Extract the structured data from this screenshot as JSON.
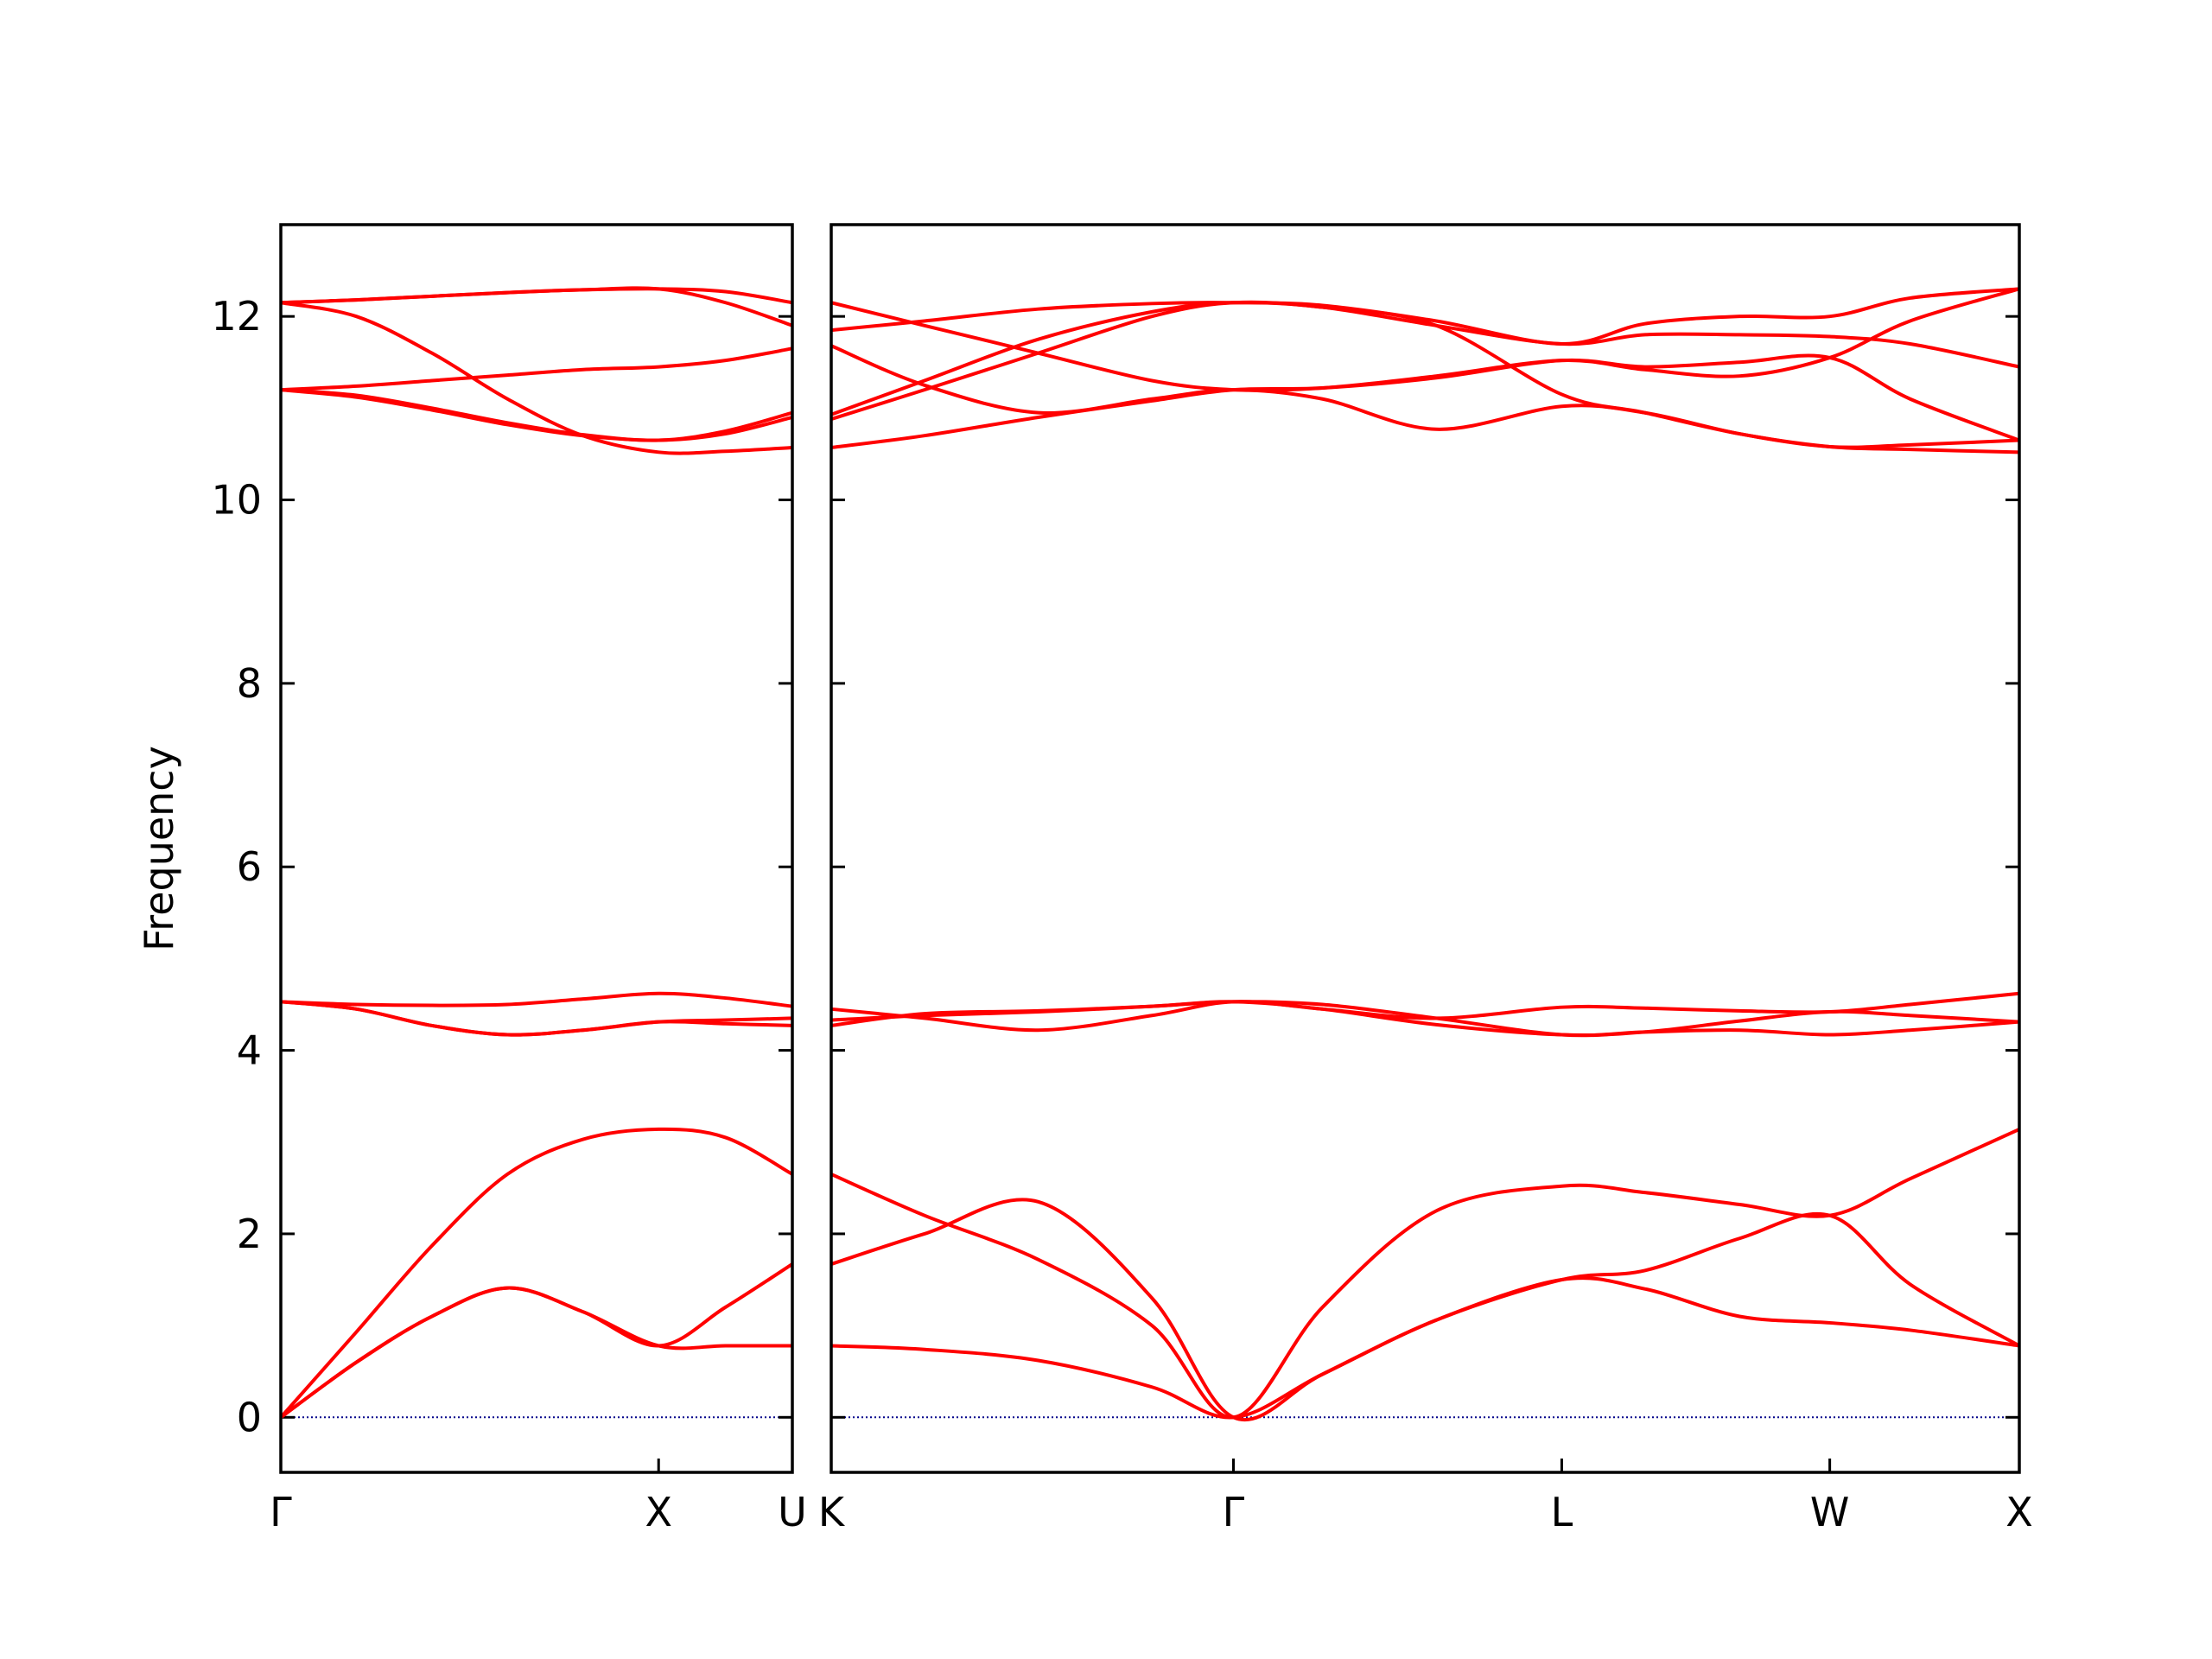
{
  "chart_data": [
    {
      "type": "line",
      "ylabel": "Frequency",
      "x": [
        0,
        0.2,
        0.4,
        0.6,
        0.8,
        1.0,
        1.177,
        1.354
      ],
      "xlim": [
        0,
        1.354
      ],
      "xticks": [
        {
          "value": 0,
          "label": "Γ"
        },
        {
          "value": 1.0,
          "label": "X"
        },
        {
          "value": 1.354,
          "label": "U"
        }
      ],
      "ylim": [
        -0.6,
        13
      ],
      "yticks": [
        0,
        2,
        4,
        6,
        8,
        10,
        12
      ],
      "hline": 0,
      "hline_color": "#00008b",
      "series": [
        {
          "color": "#ff0000",
          "values": [
            0,
            0.6,
            1.1,
            1.41,
            1.15,
            0.78,
            0.78,
            0.78
          ]
        },
        {
          "color": "#ff0000",
          "values": [
            0,
            0.6,
            1.1,
            1.41,
            1.15,
            0.78,
            1.2,
            1.67
          ]
        },
        {
          "color": "#ff0000",
          "values": [
            0,
            0.93,
            1.87,
            2.65,
            3.03,
            3.14,
            3.05,
            2.65
          ]
        },
        {
          "color": "#ff0000",
          "values": [
            4.53,
            4.45,
            4.27,
            4.17,
            4.22,
            4.31,
            4.29,
            4.27
          ]
        },
        {
          "color": "#ff0000",
          "values": [
            4.53,
            4.45,
            4.27,
            4.17,
            4.22,
            4.31,
            4.33,
            4.35
          ]
        },
        {
          "color": "#ff0000",
          "values": [
            4.53,
            4.5,
            4.49,
            4.5,
            4.56,
            4.62,
            4.57,
            4.48
          ]
        },
        {
          "color": "#ff0000",
          "values": [
            12.15,
            12.0,
            11.6,
            11.1,
            10.7,
            10.52,
            10.53,
            10.57
          ]
        },
        {
          "color": "#ff0000",
          "values": [
            11.2,
            11.12,
            10.98,
            10.82,
            10.7,
            10.65,
            10.72,
            10.9
          ]
        },
        {
          "color": "#ff0000",
          "values": [
            11.2,
            11.14,
            11.0,
            10.84,
            10.71,
            10.65,
            10.75,
            10.95
          ]
        },
        {
          "color": "#ff0000",
          "values": [
            11.2,
            11.24,
            11.3,
            11.36,
            11.42,
            11.45,
            11.52,
            11.65
          ]
        },
        {
          "color": "#ff0000",
          "values": [
            12.15,
            12.18,
            12.22,
            12.26,
            12.29,
            12.3,
            12.27,
            12.15
          ]
        },
        {
          "color": "#ff0000",
          "values": [
            12.15,
            12.18,
            12.22,
            12.26,
            12.29,
            12.3,
            12.15,
            11.9
          ]
        }
      ]
    },
    {
      "type": "line",
      "x": [
        1.354,
        1.6,
        1.9,
        2.2,
        2.415,
        2.65,
        2.95,
        3.281,
        3.5,
        3.75,
        3.988,
        4.2,
        4.488
      ],
      "xlim": [
        1.354,
        4.488
      ],
      "xticks": [
        {
          "value": 1.354,
          "label": "K"
        },
        {
          "value": 2.415,
          "label": "Γ"
        },
        {
          "value": 3.281,
          "label": "L"
        },
        {
          "value": 3.988,
          "label": "W"
        },
        {
          "value": 4.488,
          "label": "X"
        }
      ],
      "ylim": [
        -0.6,
        13
      ],
      "yticks": [
        0,
        2,
        4,
        6,
        8,
        10,
        12
      ],
      "hline": 0,
      "hline_color": "#00008b",
      "series": [
        {
          "color": "#ff0000",
          "values": [
            0.78,
            0.74,
            0.62,
            0.33,
            0,
            0.47,
            1.06,
            1.5,
            1.4,
            1.1,
            1.03,
            0.95,
            0.78
          ]
        },
        {
          "color": "#ff0000",
          "values": [
            1.67,
            2.0,
            2.35,
            1.3,
            0,
            0.47,
            1.06,
            1.5,
            1.6,
            1.95,
            2.2,
            1.45,
            0.78
          ]
        },
        {
          "color": "#ff0000",
          "values": [
            2.65,
            2.2,
            1.72,
            1.0,
            0,
            1.2,
            2.25,
            2.52,
            2.45,
            2.32,
            2.2,
            2.6,
            3.14
          ]
        },
        {
          "color": "#ff0000",
          "values": [
            4.45,
            4.35,
            4.22,
            4.38,
            4.53,
            4.45,
            4.35,
            4.47,
            4.46,
            4.43,
            4.42,
            4.5,
            4.62
          ]
        },
        {
          "color": "#ff0000",
          "values": [
            4.27,
            4.4,
            4.43,
            4.48,
            4.53,
            4.45,
            4.28,
            4.17,
            4.2,
            4.32,
            4.42,
            4.38,
            4.31
          ]
        },
        {
          "color": "#ff0000",
          "values": [
            4.33,
            4.38,
            4.42,
            4.48,
            4.53,
            4.5,
            4.35,
            4.17,
            4.2,
            4.22,
            4.17,
            4.22,
            4.31
          ]
        },
        {
          "color": "#ff0000",
          "values": [
            12.15,
            11.9,
            11.6,
            11.3,
            11.2,
            11.22,
            11.35,
            11.52,
            11.42,
            11.35,
            11.55,
            11.95,
            12.3
          ]
        },
        {
          "color": "#ff0000",
          "values": [
            11.85,
            11.95,
            12.08,
            12.14,
            12.15,
            12.12,
            11.95,
            11.7,
            11.92,
            12.0,
            12.0,
            12.2,
            12.3
          ]
        },
        {
          "color": "#ff0000",
          "values": [
            11.68,
            11.25,
            10.95,
            11.1,
            11.2,
            11.1,
            10.77,
            11.02,
            10.95,
            10.72,
            10.58,
            10.55,
            10.52
          ]
        },
        {
          "color": "#ff0000",
          "values": [
            10.93,
            11.3,
            11.75,
            12.05,
            12.15,
            12.1,
            11.9,
            11.15,
            10.95,
            10.72,
            10.58,
            10.6,
            10.65
          ]
        },
        {
          "color": "#ff0000",
          "values": [
            10.88,
            11.2,
            11.6,
            12.0,
            12.15,
            12.1,
            11.9,
            11.7,
            11.8,
            11.8,
            11.78,
            11.7,
            11.45
          ]
        },
        {
          "color": "#ff0000",
          "values": [
            10.57,
            10.7,
            10.9,
            11.08,
            11.2,
            11.22,
            11.33,
            11.52,
            11.45,
            11.5,
            11.55,
            11.1,
            10.65
          ]
        }
      ]
    }
  ]
}
